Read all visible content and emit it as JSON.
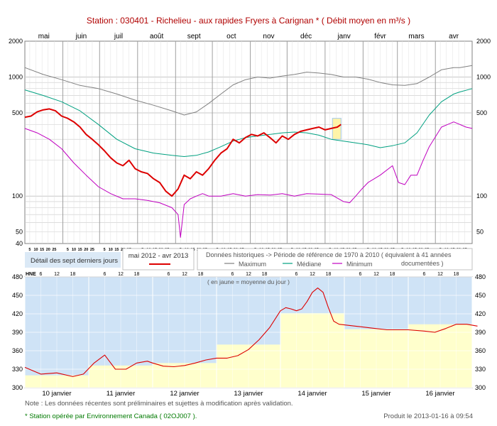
{
  "title": "Station : 030401      -   Richelieu - aux rapides Fryers à Carignan *   ( Débit moyen en m³/s )",
  "chart_data": [
    {
      "type": "line",
      "id": "annual",
      "yscale": "log",
      "ylim": [
        40,
        2000
      ],
      "y_ticks_left": [
        2000,
        1000,
        500,
        100,
        50,
        40
      ],
      "y_ticks_right": [
        2000,
        1000,
        500,
        100,
        50
      ],
      "x_range_days": [
        0,
        365
      ],
      "months": [
        {
          "label": "mai",
          "start": 0
        },
        {
          "label": "juin",
          "start": 31
        },
        {
          "label": "juil",
          "start": 61
        },
        {
          "label": "août",
          "start": 92
        },
        {
          "label": "sept",
          "start": 123
        },
        {
          "label": "oct",
          "start": 153
        },
        {
          "label": "nov",
          "start": 184
        },
        {
          "label": "déc",
          "start": 214
        },
        {
          "label": "janv",
          "start": 245
        },
        {
          "label": "févr",
          "start": 276
        },
        {
          "label": "mars",
          "start": 304
        },
        {
          "label": "avr",
          "start": 335
        }
      ],
      "day_ticks": [
        "5",
        "10",
        "15",
        "20",
        "25"
      ],
      "day_tick_offsets": [
        4,
        9,
        14,
        19,
        24
      ],
      "series": [
        {
          "name": "Maximum",
          "color": "#808080",
          "x": [
            0,
            15,
            30,
            45,
            60,
            75,
            90,
            105,
            120,
            130,
            140,
            150,
            160,
            170,
            180,
            190,
            200,
            210,
            220,
            230,
            240,
            250,
            260,
            270,
            280,
            290,
            300,
            310,
            320,
            330,
            340,
            350,
            355,
            365
          ],
          "y": [
            1200,
            1050,
            950,
            850,
            800,
            720,
            640,
            580,
            520,
            480,
            510,
            600,
            720,
            860,
            950,
            1000,
            980,
            1020,
            1050,
            1100,
            1080,
            1050,
            1000,
            1000,
            960,
            900,
            860,
            850,
            880,
            1000,
            1150,
            1200,
            1200,
            1250
          ]
        },
        {
          "name": "Médiane",
          "color": "#00a080",
          "x": [
            0,
            15,
            30,
            45,
            60,
            75,
            90,
            105,
            120,
            130,
            140,
            150,
            160,
            170,
            180,
            190,
            200,
            210,
            220,
            230,
            240,
            250,
            260,
            270,
            280,
            290,
            300,
            310,
            320,
            330,
            340,
            350,
            355,
            365
          ],
          "y": [
            780,
            700,
            620,
            520,
            400,
            300,
            250,
            230,
            220,
            215,
            220,
            235,
            260,
            290,
            310,
            320,
            330,
            340,
            345,
            340,
            325,
            300,
            290,
            280,
            270,
            255,
            265,
            280,
            340,
            480,
            620,
            720,
            750,
            800
          ]
        },
        {
          "name": "Minimum",
          "color": "#c000c0",
          "x": [
            0,
            10,
            20,
            30,
            40,
            50,
            60,
            70,
            80,
            90,
            100,
            110,
            120,
            125,
            127,
            130,
            135,
            140,
            145,
            150,
            160,
            170,
            180,
            190,
            200,
            210,
            220,
            230,
            240,
            250,
            260,
            265,
            270,
            275,
            280,
            290,
            300,
            305,
            310,
            315,
            320,
            325,
            330,
            340,
            350,
            360,
            365
          ],
          "y": [
            370,
            340,
            300,
            250,
            190,
            150,
            120,
            105,
            95,
            95,
            92,
            88,
            80,
            70,
            45,
            85,
            95,
            100,
            105,
            100,
            100,
            105,
            100,
            103,
            102,
            105,
            100,
            105,
            104,
            103,
            90,
            88,
            100,
            115,
            130,
            150,
            180,
            130,
            125,
            150,
            150,
            200,
            260,
            380,
            420,
            380,
            370
          ]
        },
        {
          "name": "mai 2012 - avr 2013",
          "color": "#dd0000",
          "x": [
            0,
            5,
            10,
            15,
            20,
            25,
            30,
            35,
            40,
            45,
            50,
            55,
            60,
            65,
            70,
            75,
            80,
            85,
            90,
            95,
            100,
            105,
            110,
            115,
            120,
            125,
            130,
            135,
            140,
            145,
            150,
            155,
            160,
            165,
            170,
            175,
            180,
            185,
            190,
            195,
            200,
            205,
            210,
            215,
            220,
            225,
            230,
            235,
            240,
            245,
            250,
            255,
            258
          ],
          "y": [
            460,
            470,
            510,
            530,
            540,
            520,
            470,
            450,
            420,
            380,
            330,
            300,
            270,
            240,
            210,
            190,
            180,
            200,
            170,
            160,
            155,
            140,
            130,
            110,
            100,
            115,
            150,
            140,
            160,
            150,
            170,
            200,
            230,
            250,
            300,
            280,
            310,
            330,
            320,
            340,
            310,
            280,
            320,
            300,
            330,
            350,
            360,
            370,
            380,
            360,
            370,
            380,
            400
          ]
        }
      ],
      "highlight": {
        "x_start": 251,
        "x_end": 258,
        "y_min": 300,
        "y_max": 450
      }
    },
    {
      "type": "line",
      "id": "seven_day",
      "ylim": [
        300,
        480
      ],
      "y_ticks": [
        300,
        330,
        360,
        390,
        420,
        450,
        480
      ],
      "x_range_hours": [
        0,
        168
      ],
      "days": [
        "10 janvier",
        "11 janvier",
        "12 janvier",
        "13 janvier",
        "14 janvier",
        "15 janvier",
        "16 janvier"
      ],
      "hour_ticks": [
        "6",
        "12",
        "18"
      ],
      "daily_means": [
        320,
        336,
        340,
        370,
        421,
        395,
        403
      ],
      "hourly_series": {
        "x": [
          0,
          6,
          12,
          18,
          22,
          26,
          30,
          34,
          38,
          42,
          46,
          48,
          52,
          56,
          60,
          64,
          68,
          72,
          76,
          80,
          84,
          88,
          92,
          96,
          98,
          100,
          102,
          104,
          106,
          108,
          110,
          112,
          114,
          116,
          118,
          120,
          124,
          130,
          136,
          144,
          150,
          154,
          158,
          162,
          166,
          170
        ],
        "y": [
          333,
          322,
          324,
          318,
          322,
          340,
          353,
          330,
          330,
          340,
          343,
          340,
          335,
          334,
          336,
          340,
          345,
          348,
          348,
          352,
          362,
          378,
          398,
          425,
          430,
          428,
          425,
          428,
          440,
          455,
          462,
          455,
          430,
          408,
          403,
          402,
          400,
          397,
          394,
          394,
          392,
          390,
          396,
          403,
          403,
          400
        ]
      }
    }
  ],
  "legend": {
    "seven_day_label": "Détail des sept derniers jours",
    "current_period": "mai 2012 - avr 2013",
    "historical_label": "Données historiques -> Période de référence  de 1970 à 2010  ( équivalent à 41 années documentées )",
    "max_label": "Maximum",
    "median_label": "Médiane",
    "min_label": "Minimum"
  },
  "hne_label": "HNE",
  "jaune_note": "( en jaune = moyenne du jour )",
  "note": "Note : Les données récentes sont préliminaires et sujettes à modification après validation.",
  "operator_note": "* Station opérée par Environnement Canada ( 02OJ007 ).",
  "produced": "Produit le 2013-01-16 à 09:54",
  "colors": {
    "grid": "#c8c8c8",
    "title": "#b00000",
    "sky": "#cfe3f6",
    "yellow": "#ffffcc",
    "current": "#dd0000"
  }
}
